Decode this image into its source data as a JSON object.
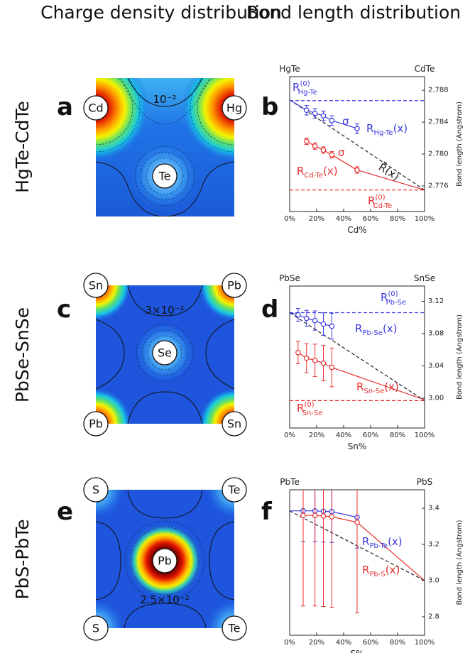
{
  "headers": [
    "Charge density distribution",
    "Bond length distribution"
  ],
  "row_labels": [
    "HgTe-CdTe",
    "PbSe-SnSe",
    "PbS-PbTe"
  ],
  "panel_letters": [
    "a",
    "b",
    "c",
    "d",
    "e",
    "f"
  ],
  "density_maps": [
    {
      "atoms": [
        "Cd",
        "Hg",
        "Te"
      ],
      "contour_label": "10⁻²"
    },
    {
      "atoms": [
        "Sn",
        "Pb",
        "Se",
        "Pb",
        "Sn"
      ],
      "contour_label": "3×10⁻²"
    },
    {
      "atoms": [
        "S",
        "Te",
        "Pb",
        "S",
        "Te"
      ],
      "contour_label": "2.5×10⁻²"
    }
  ],
  "chart_data": [
    {
      "type": "line",
      "top_left_label": "HgTe",
      "top_right_label": "CdTe",
      "x_label": "Cd%",
      "y_label": "Bond length (Angstrom)",
      "xlim": [
        0,
        100
      ],
      "xticks": [
        {
          "value": 0,
          "label": "0%"
        },
        {
          "value": 20,
          "label": "20%"
        },
        {
          "value": 40,
          "label": "40%"
        },
        {
          "value": 60,
          "label": "60%"
        },
        {
          "value": 80,
          "label": "80%"
        },
        {
          "value": 100,
          "label": "100%"
        }
      ],
      "ylim": [
        2.7728,
        2.7897
      ],
      "yticks": [
        2.776,
        {
          "value": 2.78,
          "label": "2.780"
        },
        2.784,
        2.788
      ],
      "series": [
        {
          "color": "#3a3ae0",
          "dashed": true,
          "x": [
            0,
            100
          ],
          "values": [
            2.7867,
            2.7867
          ]
        },
        {
          "color": "#e83030",
          "dashed": true,
          "x": [
            0,
            100
          ],
          "values": [
            2.7755,
            2.7755
          ]
        },
        {
          "color": "#222222",
          "dashed": true,
          "x": [
            0,
            100
          ],
          "values": [
            2.7868,
            2.7755
          ]
        },
        {
          "color": "#3a3ae0",
          "dashed": false,
          "x": [
            0,
            12.5,
            18.75,
            25,
            31.25,
            50
          ],
          "values": [
            2.7868,
            2.7855,
            2.7851,
            2.7848,
            2.7842,
            2.7832
          ],
          "errors": [
            null,
            0.0006,
            0.0006,
            0.0006,
            0.0006,
            0.0006
          ]
        },
        {
          "color": "#e83030",
          "dashed": false,
          "x": [
            12.5,
            18.75,
            25,
            31.25,
            50,
            100
          ],
          "values": [
            2.7816,
            2.781,
            2.7805,
            2.7799,
            2.778,
            2.7755
          ],
          "errors": [
            0.0004,
            0.0004,
            0.0004,
            0.0004,
            0.0004,
            null
          ]
        }
      ],
      "annotations": [
        {
          "color": "#3a3ae0",
          "base": "R",
          "sup": "(0)",
          "sub": "Hg-Te"
        },
        {
          "color": "#3a3ae0",
          "base": "σ"
        },
        {
          "color": "#3a3ae0",
          "base": "R",
          "sub": "Hg-Te",
          "suffix": "(x)"
        },
        {
          "color": "#222222",
          "base": "R̄(x)"
        },
        {
          "color": "#e83030",
          "base": "σ"
        },
        {
          "color": "#e83030",
          "base": "R",
          "sub": "Cd-Te",
          "suffix": "(x)"
        },
        {
          "color": "#e83030",
          "base": "R",
          "sup": "(0)",
          "sub": "Cd-Te"
        }
      ]
    },
    {
      "type": "line",
      "top_left_label": "PbSe",
      "top_right_label": "SnSe",
      "x_label": "Sn%",
      "y_label": "Bond length (Angstrom)",
      "xlim": [
        0,
        100
      ],
      "xticks": [
        {
          "value": 0,
          "label": "0%"
        },
        {
          "value": 20,
          "label": "20%"
        },
        {
          "value": 40,
          "label": "40%"
        },
        {
          "value": 60,
          "label": "60%"
        },
        {
          "value": 80,
          "label": "80%"
        },
        {
          "value": 100,
          "label": "100%"
        }
      ],
      "ylim": [
        2.963,
        3.139
      ],
      "yticks": [
        {
          "value": 3,
          "label": "3.00"
        },
        3.04,
        3.08,
        3.12
      ],
      "series": [
        {
          "color": "#3a3ae0",
          "dashed": true,
          "x": [
            0,
            100
          ],
          "values": [
            3.106,
            3.106
          ]
        },
        {
          "color": "#e83030",
          "dashed": true,
          "x": [
            0,
            100
          ],
          "values": [
            2.997,
            2.997
          ]
        },
        {
          "color": "#222222",
          "dashed": true,
          "x": [
            0,
            100
          ],
          "values": [
            3.106,
            2.997
          ]
        },
        {
          "color": "#3a3ae0",
          "dashed": false,
          "x": [
            0,
            6.25,
            12.5,
            18.75,
            25,
            31.25
          ],
          "values": [
            3.106,
            3.1033,
            3.0989,
            3.0962,
            3.0918,
            3.0892
          ],
          "errors": [
            null,
            0.008,
            0.01,
            0.012,
            0.014,
            0.016
          ]
        },
        {
          "color": "#e83030",
          "dashed": false,
          "x": [
            6.25,
            12.5,
            18.75,
            25,
            31.25,
            100
          ],
          "values": [
            3.0566,
            3.0495,
            3.0469,
            3.0434,
            3.0381,
            2.998
          ],
          "errors": [
            0.014,
            0.018,
            0.02,
            0.022,
            0.024,
            null
          ]
        }
      ],
      "annotations": [
        {
          "color": "#3a3ae0",
          "base": "R",
          "sup": "(0)",
          "sub": "Pb-Se"
        },
        {
          "color": "#3a3ae0",
          "base": "R",
          "sub": "Pb-Se",
          "suffix": "(x)"
        },
        {
          "color": "#e83030",
          "base": "R",
          "sub": "Sn-Se",
          "suffix": "(x)"
        },
        {
          "color": "#e83030",
          "base": "R",
          "sup": "(0)",
          "sub": "Sn-Se"
        }
      ]
    },
    {
      "type": "line",
      "top_left_label": "PbTe",
      "top_right_label": "PbS",
      "x_label": "S%",
      "y_label": "Bond length (Angstrom)",
      "xlim": [
        0,
        100
      ],
      "xticks": [
        {
          "value": 0,
          "label": "0%"
        },
        {
          "value": 20,
          "label": "20%"
        },
        {
          "value": 40,
          "label": "40%"
        },
        {
          "value": 60,
          "label": "60%"
        },
        {
          "value": 80,
          "label": "80%"
        },
        {
          "value": 100,
          "label": "100%"
        }
      ],
      "ylim": [
        2.698,
        3.502
      ],
      "yticks": [
        2.8,
        {
          "value": 3,
          "label": "3.0"
        },
        3.2,
        3.4
      ],
      "series": [
        {
          "color": "#222222",
          "dashed": true,
          "x": [
            0,
            100
          ],
          "values": [
            3.385,
            3.0
          ]
        },
        {
          "color": "#3a3ae0",
          "dashed": false,
          "x": [
            0,
            10,
            18.75,
            25,
            31.25,
            50
          ],
          "values": [
            3.385,
            3.386,
            3.385,
            3.383,
            3.381,
            3.35
          ],
          "errors": [
            null,
            0.17,
            0.17,
            0.17,
            0.17,
            0.17
          ]
        },
        {
          "color": "#e83030",
          "dashed": false,
          "x": [
            10,
            18.75,
            25,
            31.25,
            50,
            100
          ],
          "values": [
            3.36,
            3.36,
            3.357,
            3.353,
            3.322,
            3.0
          ],
          "errors": [
            0.5,
            0.5,
            0.5,
            0.5,
            0.5,
            null
          ]
        }
      ],
      "annotations": [
        {
          "color": "#3a3ae0",
          "base": "R",
          "sub": "Pb-Te",
          "suffix": "(x)"
        },
        {
          "color": "#e83030",
          "base": "R",
          "sub": "Pb-S",
          "suffix": "(x)"
        }
      ]
    }
  ]
}
